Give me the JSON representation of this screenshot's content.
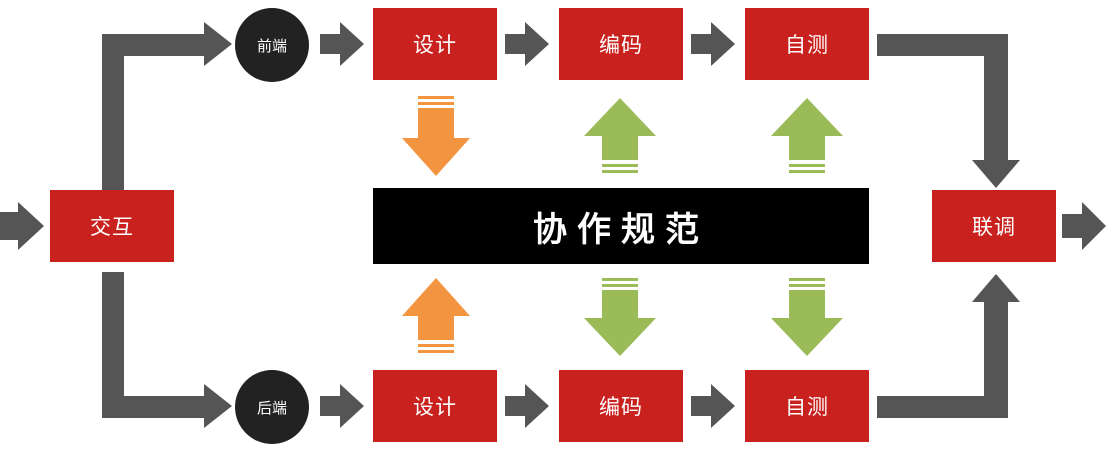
{
  "nodes": {
    "interaction": "交互",
    "frontend": "前端",
    "backend": "后端",
    "top_design": "设计",
    "top_coding": "编码",
    "top_selftest": "自测",
    "bottom_design": "设计",
    "bottom_coding": "编码",
    "bottom_selftest": "自测",
    "integration": "联调"
  },
  "banner": "协作规范",
  "colors": {
    "box": "#c9211e",
    "circle": "#222222",
    "banner": "#000000",
    "arrow_gray": "#555555",
    "arrow_orange": "#f39440",
    "arrow_green": "#9bbb59"
  }
}
